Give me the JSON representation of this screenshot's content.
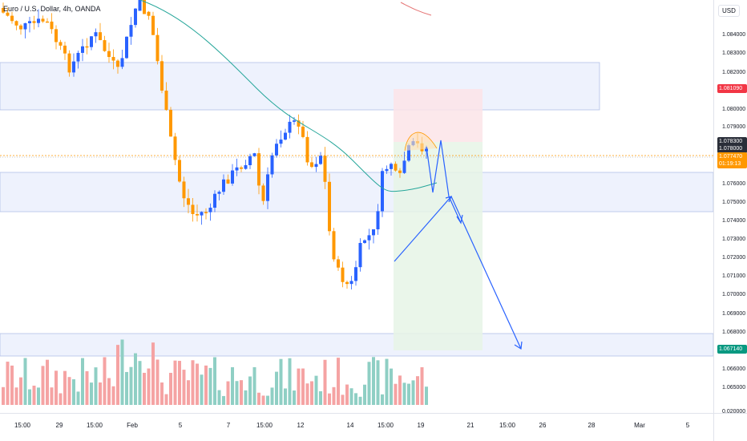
{
  "header": {
    "symbol_title": "Euro / U.S. Dollar, 4h, OANDA",
    "currency": "USD"
  },
  "price_axis": {
    "ticks": [
      "1.084000",
      "1.083000",
      "1.082000",
      "1.080000",
      "1.079000",
      "1.076000",
      "1.075000",
      "1.074000",
      "1.073000",
      "1.072000",
      "1.071000",
      "1.070000",
      "1.069000",
      "1.068000",
      "1.066000",
      "1.065000",
      "0.020000"
    ]
  },
  "price_tags": {
    "red": "1.081090",
    "navy_1": "1.078300",
    "navy_2": "1.078000",
    "orange_price": "1.077470",
    "orange_timer": "01:19:13",
    "green": "1.067140"
  },
  "time_axis": {
    "labels": [
      "15:00",
      "29",
      "15:00",
      "Feb",
      "5",
      "7",
      "15:00",
      "12",
      "14",
      "15:00",
      "19",
      "21",
      "15:00",
      "26",
      "28",
      "Mar",
      "5"
    ]
  },
  "colors": {
    "up_candle": "#2962ff",
    "down_candle": "#ff9800",
    "ma_line": "#26a69a",
    "zone_fill": "#eef2fd",
    "zone_border": "#b2c0e8",
    "stop_zone": "#fbe7ea",
    "target_zone": "#eaf5ea",
    "arrow": "#2962ff",
    "vol_up": "#8fcfc4",
    "vol_down": "#f5a3a3"
  }
}
